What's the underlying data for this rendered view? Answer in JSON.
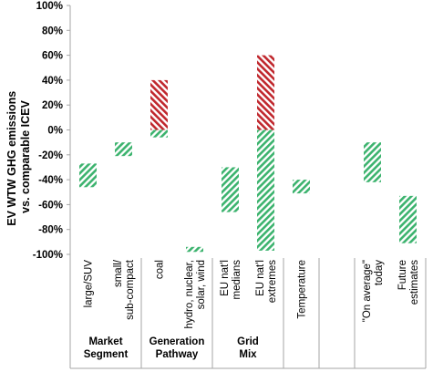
{
  "colors": {
    "reduction": "#3cb36e",
    "increase": "#c0272d",
    "axis": "#a6a6a6"
  },
  "chart_data": {
    "type": "bar",
    "subtype": "floating-range",
    "ylabel_lines": [
      "EV WTW GHG emissions",
      "vs. comparable ICEV"
    ],
    "ylim": [
      -100,
      100
    ],
    "y_ticks": [
      {
        "value": 100,
        "label": "100%"
      },
      {
        "value": 80,
        "label": "80%"
      },
      {
        "value": 60,
        "label": "60%"
      },
      {
        "value": 40,
        "label": "40%"
      },
      {
        "value": 20,
        "label": "20%"
      },
      {
        "value": 0,
        "label": "0%"
      },
      {
        "value": -20,
        "label": "-20%"
      },
      {
        "value": -40,
        "label": "-40%"
      },
      {
        "value": -60,
        "label": "-60%"
      },
      {
        "value": -80,
        "label": "-80%"
      },
      {
        "value": -100,
        "label": "-100%"
      }
    ],
    "categories": [
      {
        "lines": [
          "large/SUV"
        ],
        "low": -46,
        "high": -27
      },
      {
        "lines": [
          "small/",
          "sub-compact"
        ],
        "low": -21,
        "high": -10
      },
      {
        "lines": [
          "coal"
        ],
        "low": -6,
        "high": 40
      },
      {
        "lines": [
          "hydro, nuclear,",
          "solar, wind"
        ],
        "low": -98,
        "high": -94
      },
      {
        "lines": [
          "EU nat'l",
          "medians"
        ],
        "low": -66,
        "high": -30
      },
      {
        "lines": [
          "EU nat'l",
          "extremes"
        ],
        "low": -97,
        "high": 60
      },
      {
        "lines": [
          "Temperature"
        ],
        "low": -51,
        "high": -40
      },
      {
        "lines": [
          ""
        ],
        "low": null,
        "high": null
      },
      {
        "lines": [
          "\"On average\"",
          "today"
        ],
        "low": -42,
        "high": -10
      },
      {
        "lines": [
          "Future",
          "estimates"
        ],
        "low": -91,
        "high": -53
      }
    ],
    "groups": [
      {
        "lines": [
          "Market",
          "Segment"
        ],
        "start": 0,
        "end": 1
      },
      {
        "lines": [
          "Generation",
          "Pathway"
        ],
        "start": 2,
        "end": 3
      },
      {
        "lines": [
          "Grid",
          "Mix"
        ],
        "start": 4,
        "end": 5
      },
      {
        "lines": [],
        "start": 6,
        "end": 6
      },
      {
        "lines": [],
        "start": 7,
        "end": 7
      },
      {
        "lines": [],
        "start": 8,
        "end": 9
      }
    ]
  }
}
